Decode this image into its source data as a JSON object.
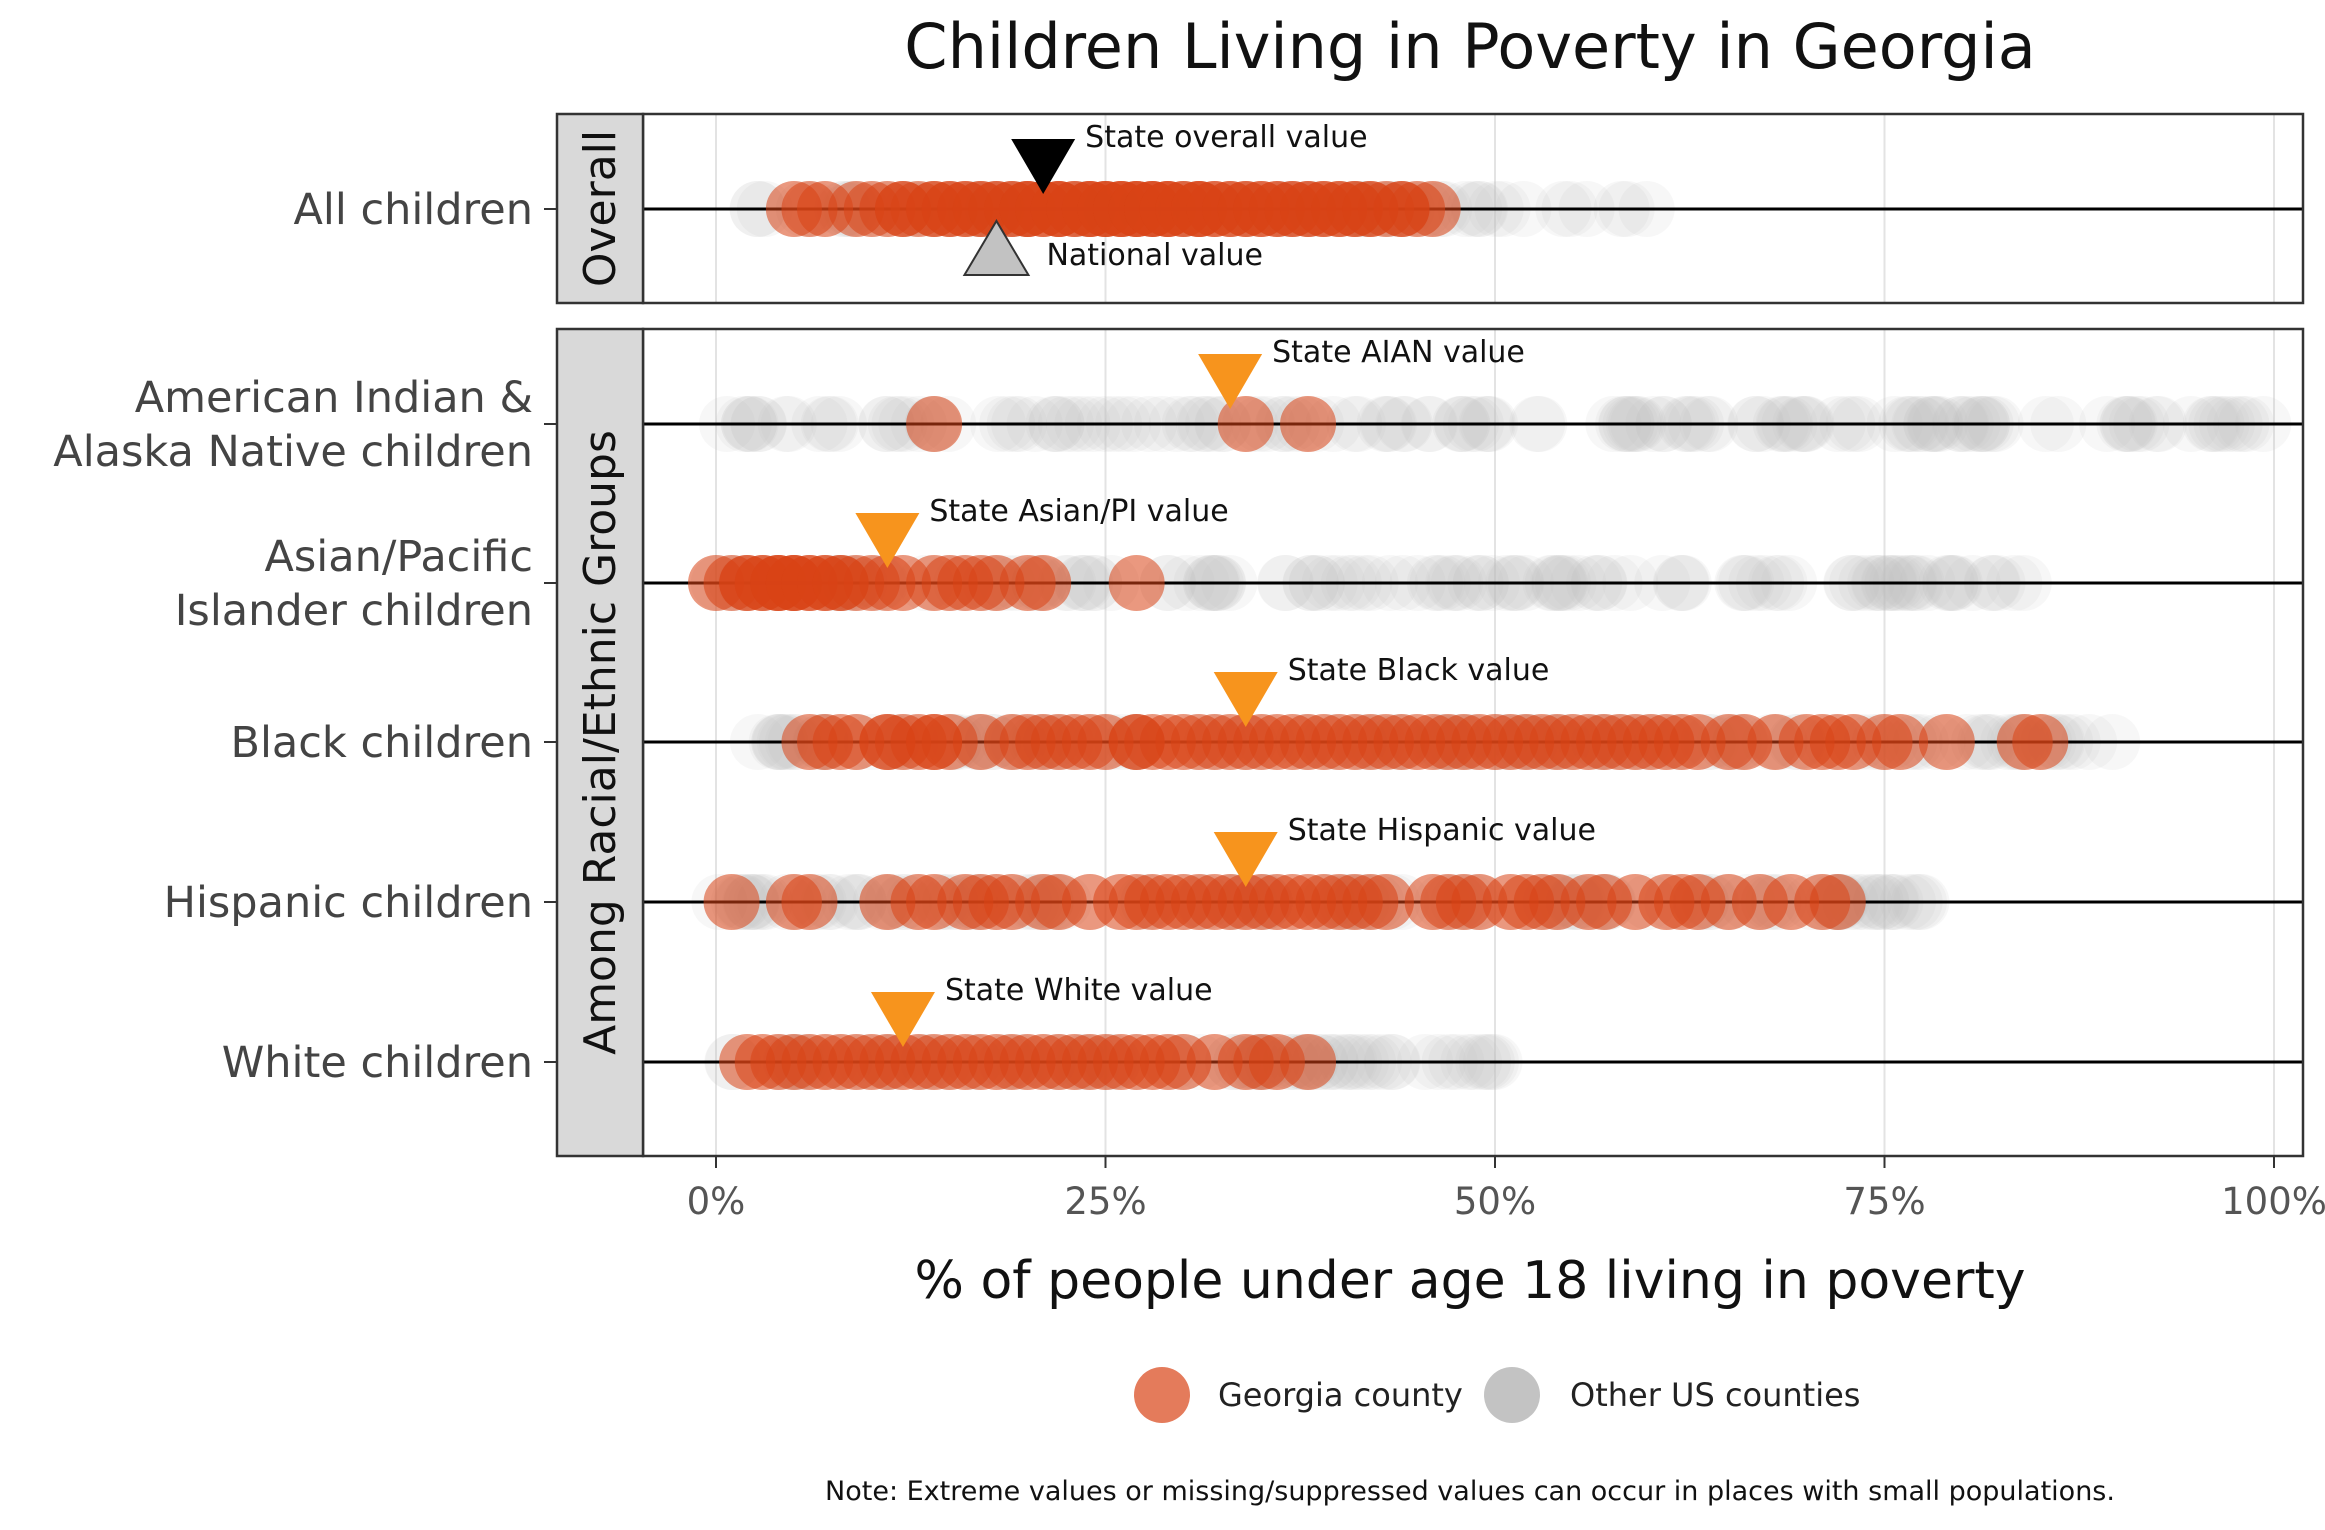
{
  "chart_data": {
    "type": "scatter",
    "title": "Children Living in Poverty in Georgia",
    "xlabel": "% of people under age 18 living in poverty",
    "xlim": [
      0,
      100
    ],
    "x_ticks": [
      "0%",
      "25%",
      "50%",
      "75%",
      "100%"
    ],
    "x_tick_values": [
      0,
      25,
      50,
      75,
      100
    ],
    "grid": true,
    "legend_position": "bottom",
    "colors": {
      "georgia": "#D84315",
      "other": "#BDBDBD",
      "state_overall": "#000000",
      "national": "#C2C2C2",
      "state_group": "#F7941D"
    },
    "legend": [
      {
        "label": "Georgia county",
        "color": "#D84315"
      },
      {
        "label": "Other US counties",
        "color": "#BDBDBD"
      }
    ],
    "note": "Note: Extreme values or missing/suppressed values can occur in places with small populations.",
    "panels": [
      {
        "strip": "Overall",
        "rows": [
          {
            "label_lines": [
              "All children"
            ],
            "georgia_x": [
              5,
              6,
              7,
              9,
              10,
              11,
              12,
              12,
              13,
              14,
              14,
              15,
              15,
              16,
              16,
              17,
              17,
              18,
              18,
              19,
              19,
              20,
              20,
              20,
              21,
              21,
              22,
              22,
              22,
              23,
              23,
              24,
              24,
              24,
              25,
              25,
              25,
              26,
              26,
              26,
              27,
              27,
              27,
              28,
              28,
              28,
              29,
              29,
              29,
              30,
              30,
              31,
              31,
              31,
              32,
              32,
              33,
              33,
              34,
              34,
              35,
              35,
              36,
              36,
              37,
              37,
              38,
              38,
              39,
              39,
              40,
              40,
              41,
              41,
              42,
              42,
              43,
              44,
              44,
              45,
              46
            ],
            "other_range": [
              2,
              60
            ],
            "markers": [
              {
                "label": "State overall value",
                "value": 21,
                "kind": "state",
                "direction": "down"
              },
              {
                "label": "National value",
                "value": 18,
                "kind": "national",
                "direction": "up"
              }
            ]
          }
        ]
      },
      {
        "strip": "Among Racial/Ethnic Groups",
        "rows": [
          {
            "label_lines": [
              "American Indian &",
              "Alaska Native children"
            ],
            "georgia_x": [
              14,
              34,
              38
            ],
            "other_range": [
              0,
              100
            ],
            "markers": [
              {
                "label": "State AIAN value",
                "value": 33,
                "kind": "group",
                "direction": "down"
              }
            ]
          },
          {
            "label_lines": [
              "Asian/Pacific",
              "Islander children"
            ],
            "georgia_x": [
              0,
              1,
              2,
              2,
              3,
              3,
              4,
              4,
              4,
              5,
              5,
              5,
              6,
              6,
              7,
              7,
              8,
              8,
              9,
              10,
              11,
              12,
              14,
              15,
              16,
              17,
              18,
              20,
              21,
              27
            ],
            "other_range": [
              0,
              85
            ],
            "markers": [
              {
                "label": "State Asian/PI value",
                "value": 11,
                "kind": "group",
                "direction": "down"
              }
            ]
          },
          {
            "label_lines": [
              "Black children"
            ],
            "georgia_x": [
              6,
              7,
              8,
              9,
              11,
              11,
              12,
              13,
              14,
              14,
              15,
              17,
              19,
              20,
              21,
              22,
              23,
              24,
              25,
              27,
              27,
              28,
              29,
              30,
              31,
              32,
              33,
              34,
              35,
              36,
              37,
              38,
              39,
              40,
              41,
              42,
              43,
              44,
              45,
              46,
              47,
              48,
              49,
              50,
              51,
              52,
              53,
              54,
              55,
              56,
              57,
              58,
              59,
              60,
              61,
              62,
              63,
              65,
              66,
              68,
              70,
              71,
              72,
              73,
              75,
              76,
              79,
              84,
              85
            ],
            "other_range": [
              2,
              90
            ],
            "markers": [
              {
                "label": "State Black value",
                "value": 34,
                "kind": "group",
                "direction": "down"
              }
            ]
          },
          {
            "label_lines": [
              "Hispanic children"
            ],
            "georgia_x": [
              1,
              5,
              6,
              11,
              13,
              14,
              16,
              17,
              18,
              19,
              21,
              22,
              24,
              26,
              27,
              28,
              29,
              30,
              31,
              32,
              33,
              34,
              35,
              36,
              37,
              38,
              39,
              40,
              41,
              42,
              43,
              46,
              47,
              48,
              49,
              51,
              52,
              53,
              54,
              56,
              57,
              59,
              61,
              62,
              63,
              65,
              67,
              69,
              71,
              72
            ],
            "other_range": [
              0,
              80
            ],
            "markers": [
              {
                "label": "State Hispanic value",
                "value": 34,
                "kind": "group",
                "direction": "down"
              }
            ]
          },
          {
            "label_lines": [
              "White children"
            ],
            "georgia_x": [
              2,
              3,
              4,
              5,
              6,
              7,
              8,
              9,
              10,
              11,
              12,
              13,
              14,
              15,
              16,
              17,
              18,
              19,
              20,
              21,
              22,
              23,
              24,
              25,
              26,
              27,
              28,
              29,
              30,
              32,
              34,
              35,
              36,
              38
            ],
            "other_range": [
              0,
              50
            ],
            "markers": [
              {
                "label": "State White value",
                "value": 12,
                "kind": "group",
                "direction": "down"
              }
            ]
          }
        ]
      }
    ]
  }
}
